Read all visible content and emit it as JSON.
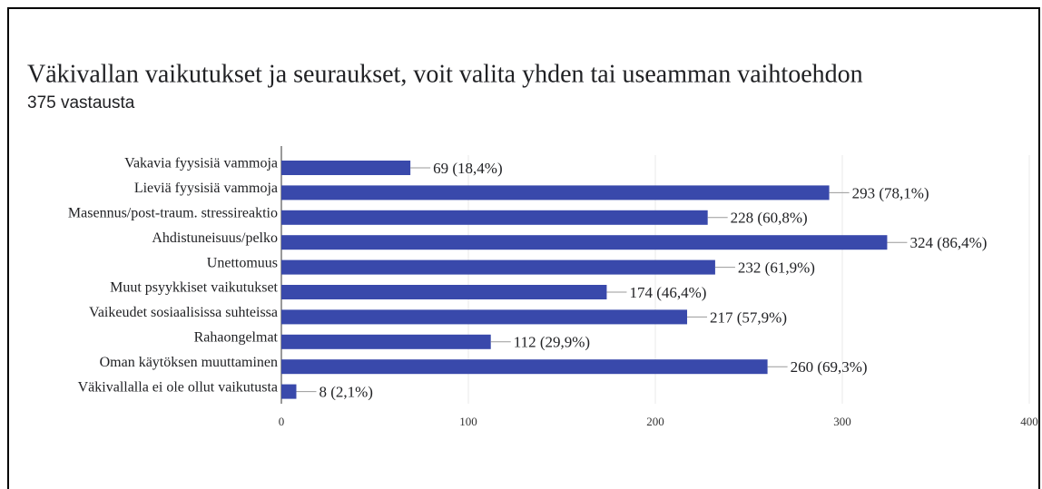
{
  "chart_data": {
    "type": "hbar",
    "title": "Väkivallan vaikutukset ja seuraukset, voit valita yhden tai useamman vaihtoehdon",
    "subtitle": "375 vastausta",
    "categories": [
      "Vakavia fyysisiä vammoja",
      "Lieviä fyysisiä vammoja",
      "Masennus/post-traum. stressireaktio",
      "Ahdistuneisuus/pelko",
      "Unettomuus",
      "Muut psyykkiset vaikutukset",
      "Vaikeudet sosiaalisissa suhteissa",
      "Rahaongelmat",
      "Oman käytöksen muuttaminen",
      "Väkivallalla ei ole ollut vaikutusta"
    ],
    "values": [
      69,
      293,
      228,
      324,
      232,
      174,
      217,
      112,
      260,
      8
    ],
    "value_labels": [
      "69 (18,4%)",
      "293 (78,1%)",
      "228 (60,8%)",
      "324 (86,4%)",
      "232 (61,9%)",
      "174 (46,4%)",
      "217 (57,9%)",
      "112 (29,9%)",
      "260 (69,3%)",
      "8 (2,1%)"
    ],
    "color": "#3949ab",
    "xlim": [
      0,
      400
    ],
    "xticks": [
      0,
      100,
      200,
      300,
      400
    ],
    "grid": true
  }
}
